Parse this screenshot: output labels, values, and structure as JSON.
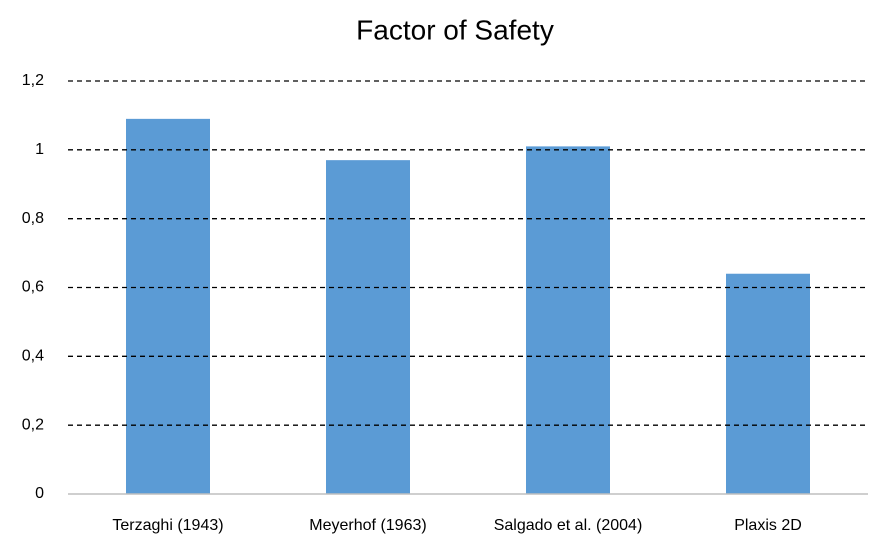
{
  "chart_data": {
    "type": "bar",
    "title": "Factor of Safety",
    "categories": [
      "Terzaghi (1943)",
      "Meyerhof (1963)",
      "Salgado et al. (2004)",
      "Plaxis 2D"
    ],
    "values": [
      1.09,
      0.97,
      1.01,
      0.64
    ],
    "color": "#5b9bd5",
    "ylim": [
      0,
      1.2
    ],
    "yticks": [
      0,
      {
        "value": 0.2,
        "label": "0,2"
      },
      {
        "value": 0.4,
        "label": "0,4"
      },
      {
        "value": 0.6,
        "label": "0,6"
      },
      {
        "value": 0.8,
        "label": "0,8"
      },
      1,
      {
        "value": 1.2,
        "label": "1,2"
      }
    ],
    "grid": true
  }
}
